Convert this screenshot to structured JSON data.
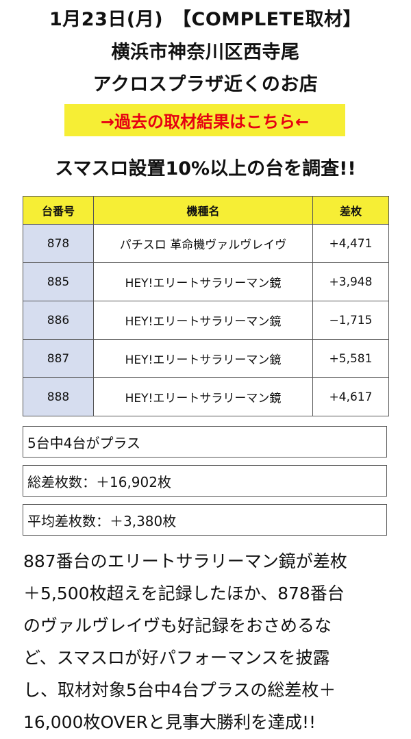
{
  "header": {
    "line1": "1月23日(月)　【COMPLETE取材】",
    "line2": "横浜市神奈川区西寺尾",
    "line3": "アクロスプラザ近くのお店"
  },
  "link_banner": {
    "label": "→過去の取材結果はこちら←"
  },
  "survey_heading": "スマスロ設置10%以上の台を調査!!",
  "colors": {
    "header_yellow": "#f6ee35",
    "link_red": "#e60012",
    "number_cell_blue": "#d6ddef"
  },
  "table": {
    "headers": [
      "台番号",
      "機種名",
      "差枚"
    ],
    "rows": [
      {
        "number": "878",
        "machine": "パチスロ 革命機ヴァルヴレイヴ",
        "diff": "+4,471"
      },
      {
        "number": "885",
        "machine": "HEY!エリートサラリーマン鏡",
        "diff": "+3,948"
      },
      {
        "number": "886",
        "machine": "HEY!エリートサラリーマン鏡",
        "diff": "−1,715"
      },
      {
        "number": "887",
        "machine": "HEY!エリートサラリーマン鏡",
        "diff": "+5,581"
      },
      {
        "number": "888",
        "machine": "HEY!エリートサラリーマン鏡",
        "diff": "+4,617"
      }
    ]
  },
  "summary": {
    "plus_count": "5台中4台がプラス",
    "total_diff": "総差枚数：＋16,902枚",
    "avg_diff": "平均差枚数：＋3,380枚"
  },
  "body_lines": [
    "887番台のエリートサラリーマン鏡が差枚",
    "＋5,500枚超えを記録したほか、878番台",
    "のヴァルヴレイヴも好記録をおさめるな",
    "ど、スマスロが好パフォーマンスを披露",
    "し、取材対象5台中4台プラスの総差枚＋",
    "16,000枚OVERと見事大勝利を達成!!"
  ]
}
